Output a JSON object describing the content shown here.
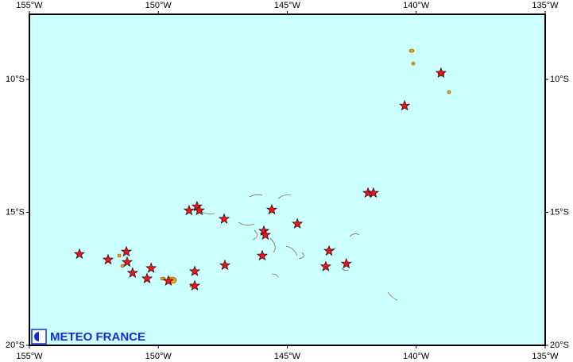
{
  "chart_data": {
    "type": "map",
    "xlim": [
      -155,
      -135
    ],
    "ylim": [
      -20,
      -7.55
    ],
    "xticks": [
      {
        "value": -155,
        "label": "155°W"
      },
      {
        "value": -150,
        "label": "150°W"
      },
      {
        "value": -145,
        "label": "145°W"
      },
      {
        "value": -140,
        "label": "140°W"
      },
      {
        "value": -135,
        "label": "135°W"
      }
    ],
    "yticks": [
      {
        "value": -10,
        "label": "10°S"
      },
      {
        "value": -15,
        "label": "15°S"
      },
      {
        "value": -20,
        "label": "20°S"
      }
    ],
    "background": "#ccffff",
    "marker": "star",
    "color": "#e8161c",
    "points": {
      "x": [
        -140.45,
        -139.04,
        -141.87,
        -141.66,
        -148.5,
        -148.81,
        -148.41,
        -147.45,
        -145.6,
        -144.61,
        -145.91,
        -145.85,
        -145.97,
        -143.38,
        -142.71,
        -143.51,
        -147.42,
        -148.59,
        -148.59,
        -153.06,
        -151.95,
        -151.24,
        -151.21,
        -151.0,
        -150.28,
        -150.44,
        -149.61
      ],
      "y": [
        -10.99,
        -9.76,
        -14.27,
        -14.27,
        -14.78,
        -14.93,
        -14.93,
        -15.25,
        -14.9,
        -15.43,
        -15.7,
        -15.85,
        -16.63,
        -16.45,
        -16.93,
        -17.04,
        -16.99,
        -17.22,
        -17.76,
        -16.57,
        -16.78,
        -16.48,
        -16.87,
        -17.28,
        -17.1,
        -17.49,
        -17.58
      ]
    }
  },
  "logo": {
    "text": "METEO FRANCE"
  }
}
